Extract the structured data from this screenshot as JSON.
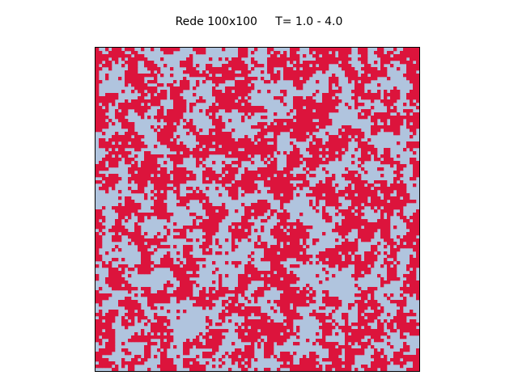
{
  "chart_data": {
    "type": "heatmap",
    "title": "Rede 100x100     T= 1.0 - 4.0",
    "grid_rows": 100,
    "grid_cols": 100,
    "states": [
      {
        "value": 1,
        "color": "#dc143c"
      },
      {
        "value": -1,
        "color": "#b0c4de"
      }
    ],
    "spin_up_fraction": 0.5,
    "grid": false,
    "axes_visible": false,
    "frame_color": "#000000"
  }
}
